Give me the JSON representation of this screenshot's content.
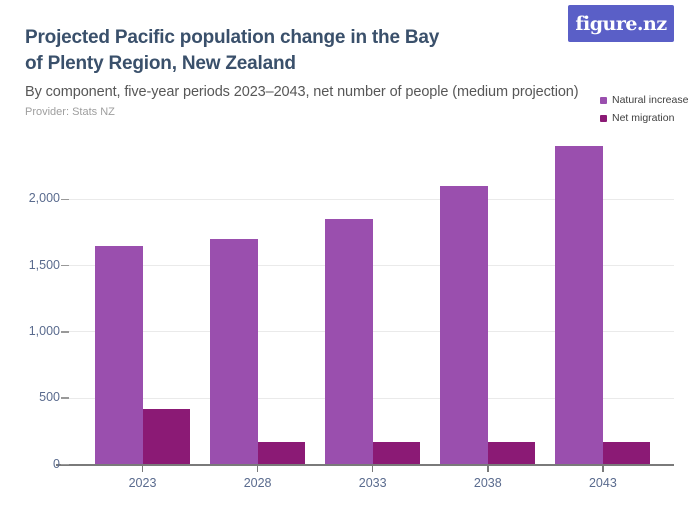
{
  "header": {
    "title_lines": [
      "Projected Pacific population change in the Bay",
      "of Plenty Region, New Zealand"
    ],
    "subtitle": "By component, five-year periods 2023–2043, net number of people (medium projection)",
    "provider": "Provider: Stats NZ",
    "logo_text": "figure.nz"
  },
  "colors": {
    "logo_bg": "#5a5fc7",
    "title": "#3a506b",
    "natural_increase": "#9a4fae",
    "net_migration": "#8b1a75",
    "axis_label": "#5a6b8e",
    "gridline": "#eaeaea"
  },
  "chart_data": {
    "type": "bar",
    "title": "Projected Pacific population change in the Bay of Plenty Region, New Zealand",
    "subtitle": "By component, five-year periods 2023–2043, net number of people (medium projection)",
    "categories": [
      "2023",
      "2028",
      "2033",
      "2038",
      "2043"
    ],
    "series": [
      {
        "name": "Natural increase",
        "color": "#9a4fae",
        "values": [
          1650,
          1700,
          1850,
          2100,
          2400
        ]
      },
      {
        "name": "Net migration",
        "color": "#8b1a75",
        "values": [
          420,
          170,
          170,
          170,
          170
        ]
      }
    ],
    "xlabel": "",
    "ylabel": "",
    "ylim": [
      0,
      2500
    ],
    "yticks": [
      0,
      500,
      1000,
      1500,
      2000
    ],
    "ytick_labels": [
      "0",
      "500",
      "1,000",
      "1,500",
      "2,000"
    ],
    "grid": "horizontal",
    "legend_position": "top-right"
  }
}
